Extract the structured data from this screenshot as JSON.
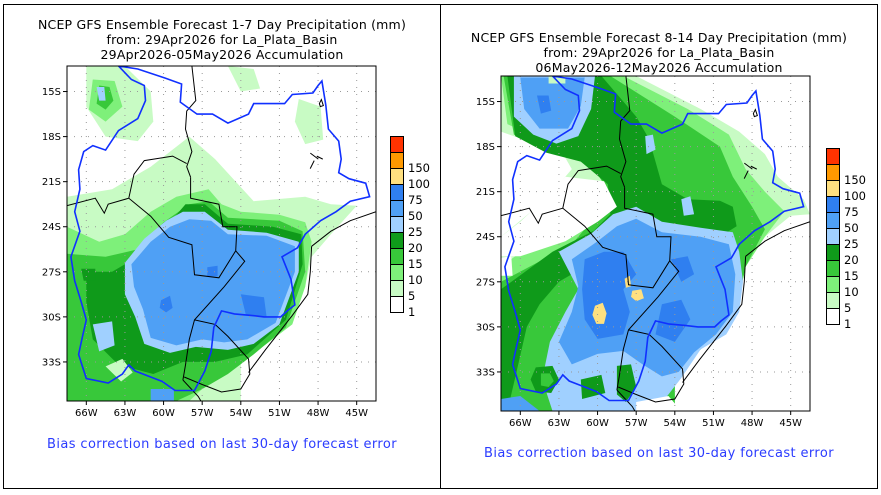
{
  "panels": [
    {
      "title_lines": [
        "NCEP GFS Ensemble Forecast 1-7 Day Precipitation (mm)",
        "from: 29Apr2026   for La_Plata_Basin",
        "29Apr2026-05May2026 Accumulation"
      ],
      "footer": "Bias correction based on last 30-day forecast error"
    },
    {
      "title_lines": [
        "NCEP GFS Ensemble Forecast 8-14 Day Precipitation (mm)",
        "from: 29Apr2026   for La_Plata_Basin",
        "06May2026-12May2026 Accumulation"
      ],
      "footer": "Bias correction based on last 30-day forecast error"
    }
  ],
  "axes": {
    "lat_labels": [
      "15S",
      "18S",
      "21S",
      "24S",
      "27S",
      "30S",
      "33S"
    ],
    "lon_labels": [
      "66W",
      "63W",
      "60W",
      "57W",
      "54W",
      "51W",
      "48W",
      "45W"
    ]
  },
  "legend": {
    "unit": "mm",
    "levels": [
      {
        "label": "",
        "color": "#ff3300"
      },
      {
        "label": "150",
        "color": "#ff9900"
      },
      {
        "label": "100",
        "color": "#ffe080"
      },
      {
        "label": "75",
        "color": "#2f7ff0"
      },
      {
        "label": "50",
        "color": "#4fa0f5"
      },
      {
        "label": "25",
        "color": "#a0d0ff"
      },
      {
        "label": "20",
        "color": "#0f9a1a"
      },
      {
        "label": "15",
        "color": "#38c83a"
      },
      {
        "label": "10",
        "color": "#7ef07a"
      },
      {
        "label": "5",
        "color": "#c8fbc4"
      },
      {
        "label": "1",
        "color": "#ffffff"
      }
    ]
  },
  "colors": {
    "basin_outline": "#1030ff",
    "borders": "#000000",
    "footer_text": "#2b3cff"
  }
}
